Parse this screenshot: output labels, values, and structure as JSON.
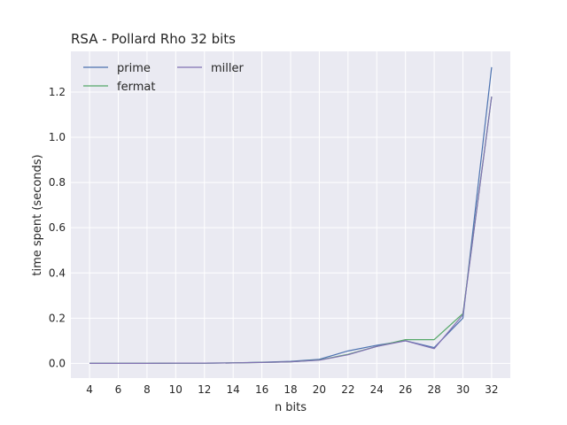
{
  "chart_data": {
    "type": "line",
    "title": "RSA - Pollard Rho 32 bits",
    "xlabel": "n bits",
    "ylabel": "time spent (seconds)",
    "x": [
      4,
      6,
      8,
      10,
      12,
      14,
      16,
      18,
      20,
      22,
      24,
      26,
      28,
      30,
      32
    ],
    "xlim": [
      2.7,
      33.3
    ],
    "ylim": [
      -0.065,
      1.38
    ],
    "xticks": [
      "4",
      "6",
      "8",
      "10",
      "12",
      "14",
      "16",
      "18",
      "20",
      "22",
      "24",
      "26",
      "28",
      "30",
      "32"
    ],
    "yticks": [
      "0.0",
      "0.2",
      "0.4",
      "0.6",
      "0.8",
      "1.0",
      "1.2"
    ],
    "ytick_values": [
      0.0,
      0.2,
      0.4,
      0.6,
      0.8,
      1.0,
      1.2
    ],
    "grid": true,
    "legend_position": "top-left",
    "series": [
      {
        "name": "prime",
        "color": "#4c72b0",
        "values": [
          0.0,
          0.0,
          0.0,
          0.001,
          0.001,
          0.002,
          0.005,
          0.009,
          0.018,
          0.055,
          0.08,
          0.1,
          0.07,
          0.2,
          1.31
        ]
      },
      {
        "name": "fermat",
        "color": "#55a868",
        "values": [
          0.0,
          0.0,
          0.0,
          0.001,
          0.001,
          0.002,
          0.004,
          0.007,
          0.015,
          0.04,
          0.075,
          0.105,
          0.105,
          0.22,
          1.18
        ]
      },
      {
        "name": "miller",
        "color": "#8172b2",
        "values": [
          0.0,
          0.0,
          0.0,
          0.001,
          0.001,
          0.002,
          0.004,
          0.007,
          0.014,
          0.038,
          0.075,
          0.1,
          0.065,
          0.215,
          1.18
        ]
      }
    ]
  }
}
